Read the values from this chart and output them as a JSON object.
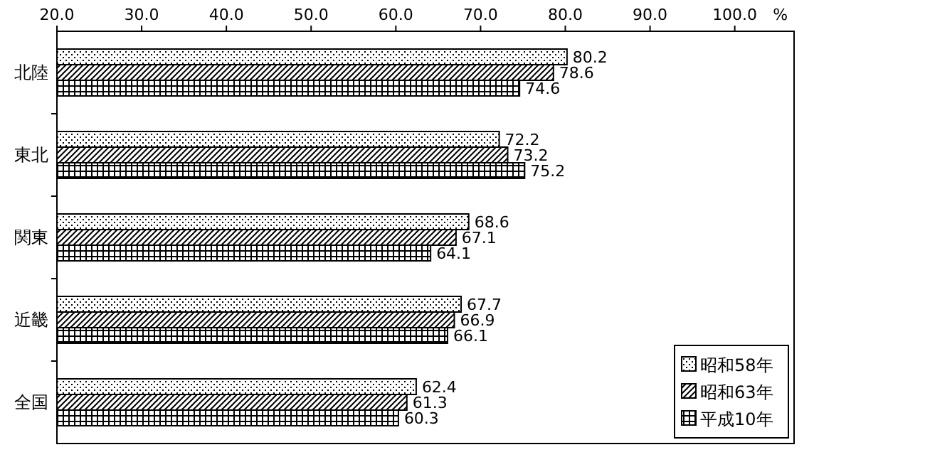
{
  "chart_data": {
    "type": "bar",
    "orientation": "horizontal",
    "categories": [
      "北陸",
      "東北",
      "関東",
      "近畿",
      "全国"
    ],
    "series": [
      {
        "name": "昭和58年",
        "color": "#000000",
        "values": [
          80.2,
          72.2,
          68.6,
          67.7,
          62.4
        ]
      },
      {
        "name": "昭和63年",
        "color": "#000000",
        "values": [
          78.6,
          73.2,
          67.1,
          66.9,
          61.3
        ]
      },
      {
        "name": "平成10年",
        "color": "#000000",
        "values": [
          74.6,
          75.2,
          64.1,
          66.1,
          60.3
        ]
      }
    ],
    "xlim": [
      20,
      107
    ],
    "xticks": [
      {
        "value": 20,
        "label": "20.0"
      },
      {
        "value": 30,
        "label": "30.0"
      },
      {
        "value": 40,
        "label": "40.0"
      },
      {
        "value": 50,
        "label": "50.0"
      },
      {
        "value": 60,
        "label": "60.0"
      },
      {
        "value": 70,
        "label": "70.0"
      },
      {
        "value": 80,
        "label": "80.0"
      },
      {
        "value": 90,
        "label": "90.0"
      },
      {
        "value": 100,
        "label": "100.0"
      }
    ],
    "xlabel": "%",
    "data_labels": true,
    "legend": "bottom right",
    "grid": false
  }
}
